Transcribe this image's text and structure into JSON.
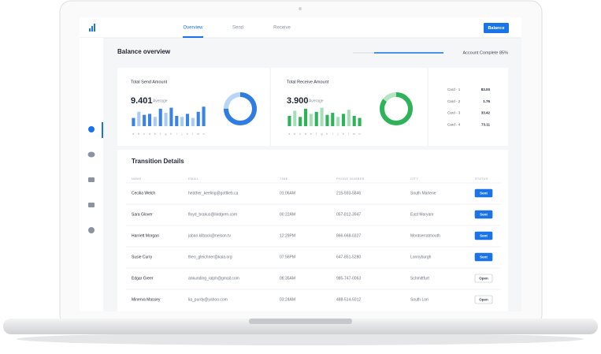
{
  "nav": {
    "tabs": [
      "Overview",
      "Send",
      "Receive"
    ],
    "active_tab": 0,
    "button": "Balance"
  },
  "header": {
    "title": "Balance overview",
    "progress_label": "Account Complete 85%"
  },
  "chart_data": [
    {
      "type": "bar",
      "title": "Total Send Amount",
      "amount": "9.401",
      "amount_note": "Average",
      "categories": [
        "a",
        "b",
        "c",
        "d",
        "e",
        "f",
        "g",
        "h",
        "i",
        "j",
        "k",
        "l",
        "m",
        "n"
      ],
      "values": [
        40,
        70,
        55,
        60,
        45,
        85,
        65,
        90,
        50,
        45,
        60,
        40,
        70,
        95
      ],
      "colors": [
        "#3b82e6",
        "#a9cbf5",
        "#3b82e6",
        "#3b82e6",
        "#a9cbf5",
        "#3b82e6",
        "#a9cbf5",
        "#3b82e6",
        "#3b82e6",
        "#a9cbf5",
        "#3b82e6",
        "#a9cbf5",
        "#3b82e6",
        "#3b82e6"
      ],
      "ylim": [
        0,
        100
      ],
      "donut_value": 75,
      "donut_color": "#2f7de1",
      "donut_track": "#b9d5f7"
    },
    {
      "type": "bar",
      "title": "Total Receive Amount",
      "amount": "3.900",
      "amount_note": "Average",
      "categories": [
        "a",
        "b",
        "c",
        "d",
        "e",
        "f",
        "g",
        "h",
        "i",
        "j",
        "k",
        "l",
        "m",
        "n"
      ],
      "values": [
        50,
        75,
        45,
        85,
        60,
        70,
        90,
        55,
        65,
        45,
        60,
        80,
        50,
        40
      ],
      "colors": [
        "#2fb35a",
        "#a6dfb7",
        "#2fb35a",
        "#2fb35a",
        "#a6dfb7",
        "#2fb35a",
        "#a6dfb7",
        "#2fb35a",
        "#2fb35a",
        "#a6dfb7",
        "#2fb35a",
        "#a6dfb7",
        "#2fb35a",
        "#2fb35a"
      ],
      "ylim": [
        0,
        100
      ],
      "donut_value": 85,
      "donut_color": "#2fb35a",
      "donut_track": "#b5e4c3"
    }
  ],
  "cards": [
    {
      "label": "Card - 1",
      "value": "83.00"
    },
    {
      "label": "Card - 2",
      "value": "1.76"
    },
    {
      "label": "Card - 3",
      "value": "33.42"
    },
    {
      "label": "Card - 4",
      "value": "73.11"
    }
  ],
  "table": {
    "title": "Transition Details",
    "header": [
      "NAME",
      "EMAIL",
      "TIME",
      "PHONE NUMBER",
      "CITY",
      "STATUS"
    ],
    "rows": [
      {
        "cells": [
          "Cecilia Welch",
          "heather_keeling@gottlieb.ca",
          "01:06AM",
          "215-593-5846",
          "South Marlene",
          "Sent"
        ],
        "status_filled": true
      },
      {
        "cells": [
          "Sara Glover",
          "floyd_brakus@lindgren.com",
          "00:22AM",
          "057-812-3947",
          "East Maryam",
          "Sent"
        ],
        "status_filled": true
      },
      {
        "cells": [
          "Harriett Morgan",
          "jabari.kilback@nelson.tv",
          "12:29PM",
          "866-668-0327",
          "Montserratmouth",
          "Sent"
        ],
        "status_filled": true
      },
      {
        "cells": [
          "Susie Curry",
          "theo_gleichner@kaia.org",
          "07:56PM",
          "647-851-5280",
          "Lonnyburgh",
          "Sent"
        ],
        "status_filled": true
      },
      {
        "cells": [
          "Edgar Greer",
          "ankunding_ralph@gmail.com",
          "08:35AM",
          "985-747-0063",
          "Schmittfurt",
          "Open"
        ],
        "status_filled": false
      },
      {
        "cells": [
          "Minerva Massey",
          "lia_purdy@yahoo.com",
          "03:24AM",
          "488-514-5012",
          "South Lori",
          "Open"
        ],
        "status_filled": false
      }
    ]
  }
}
